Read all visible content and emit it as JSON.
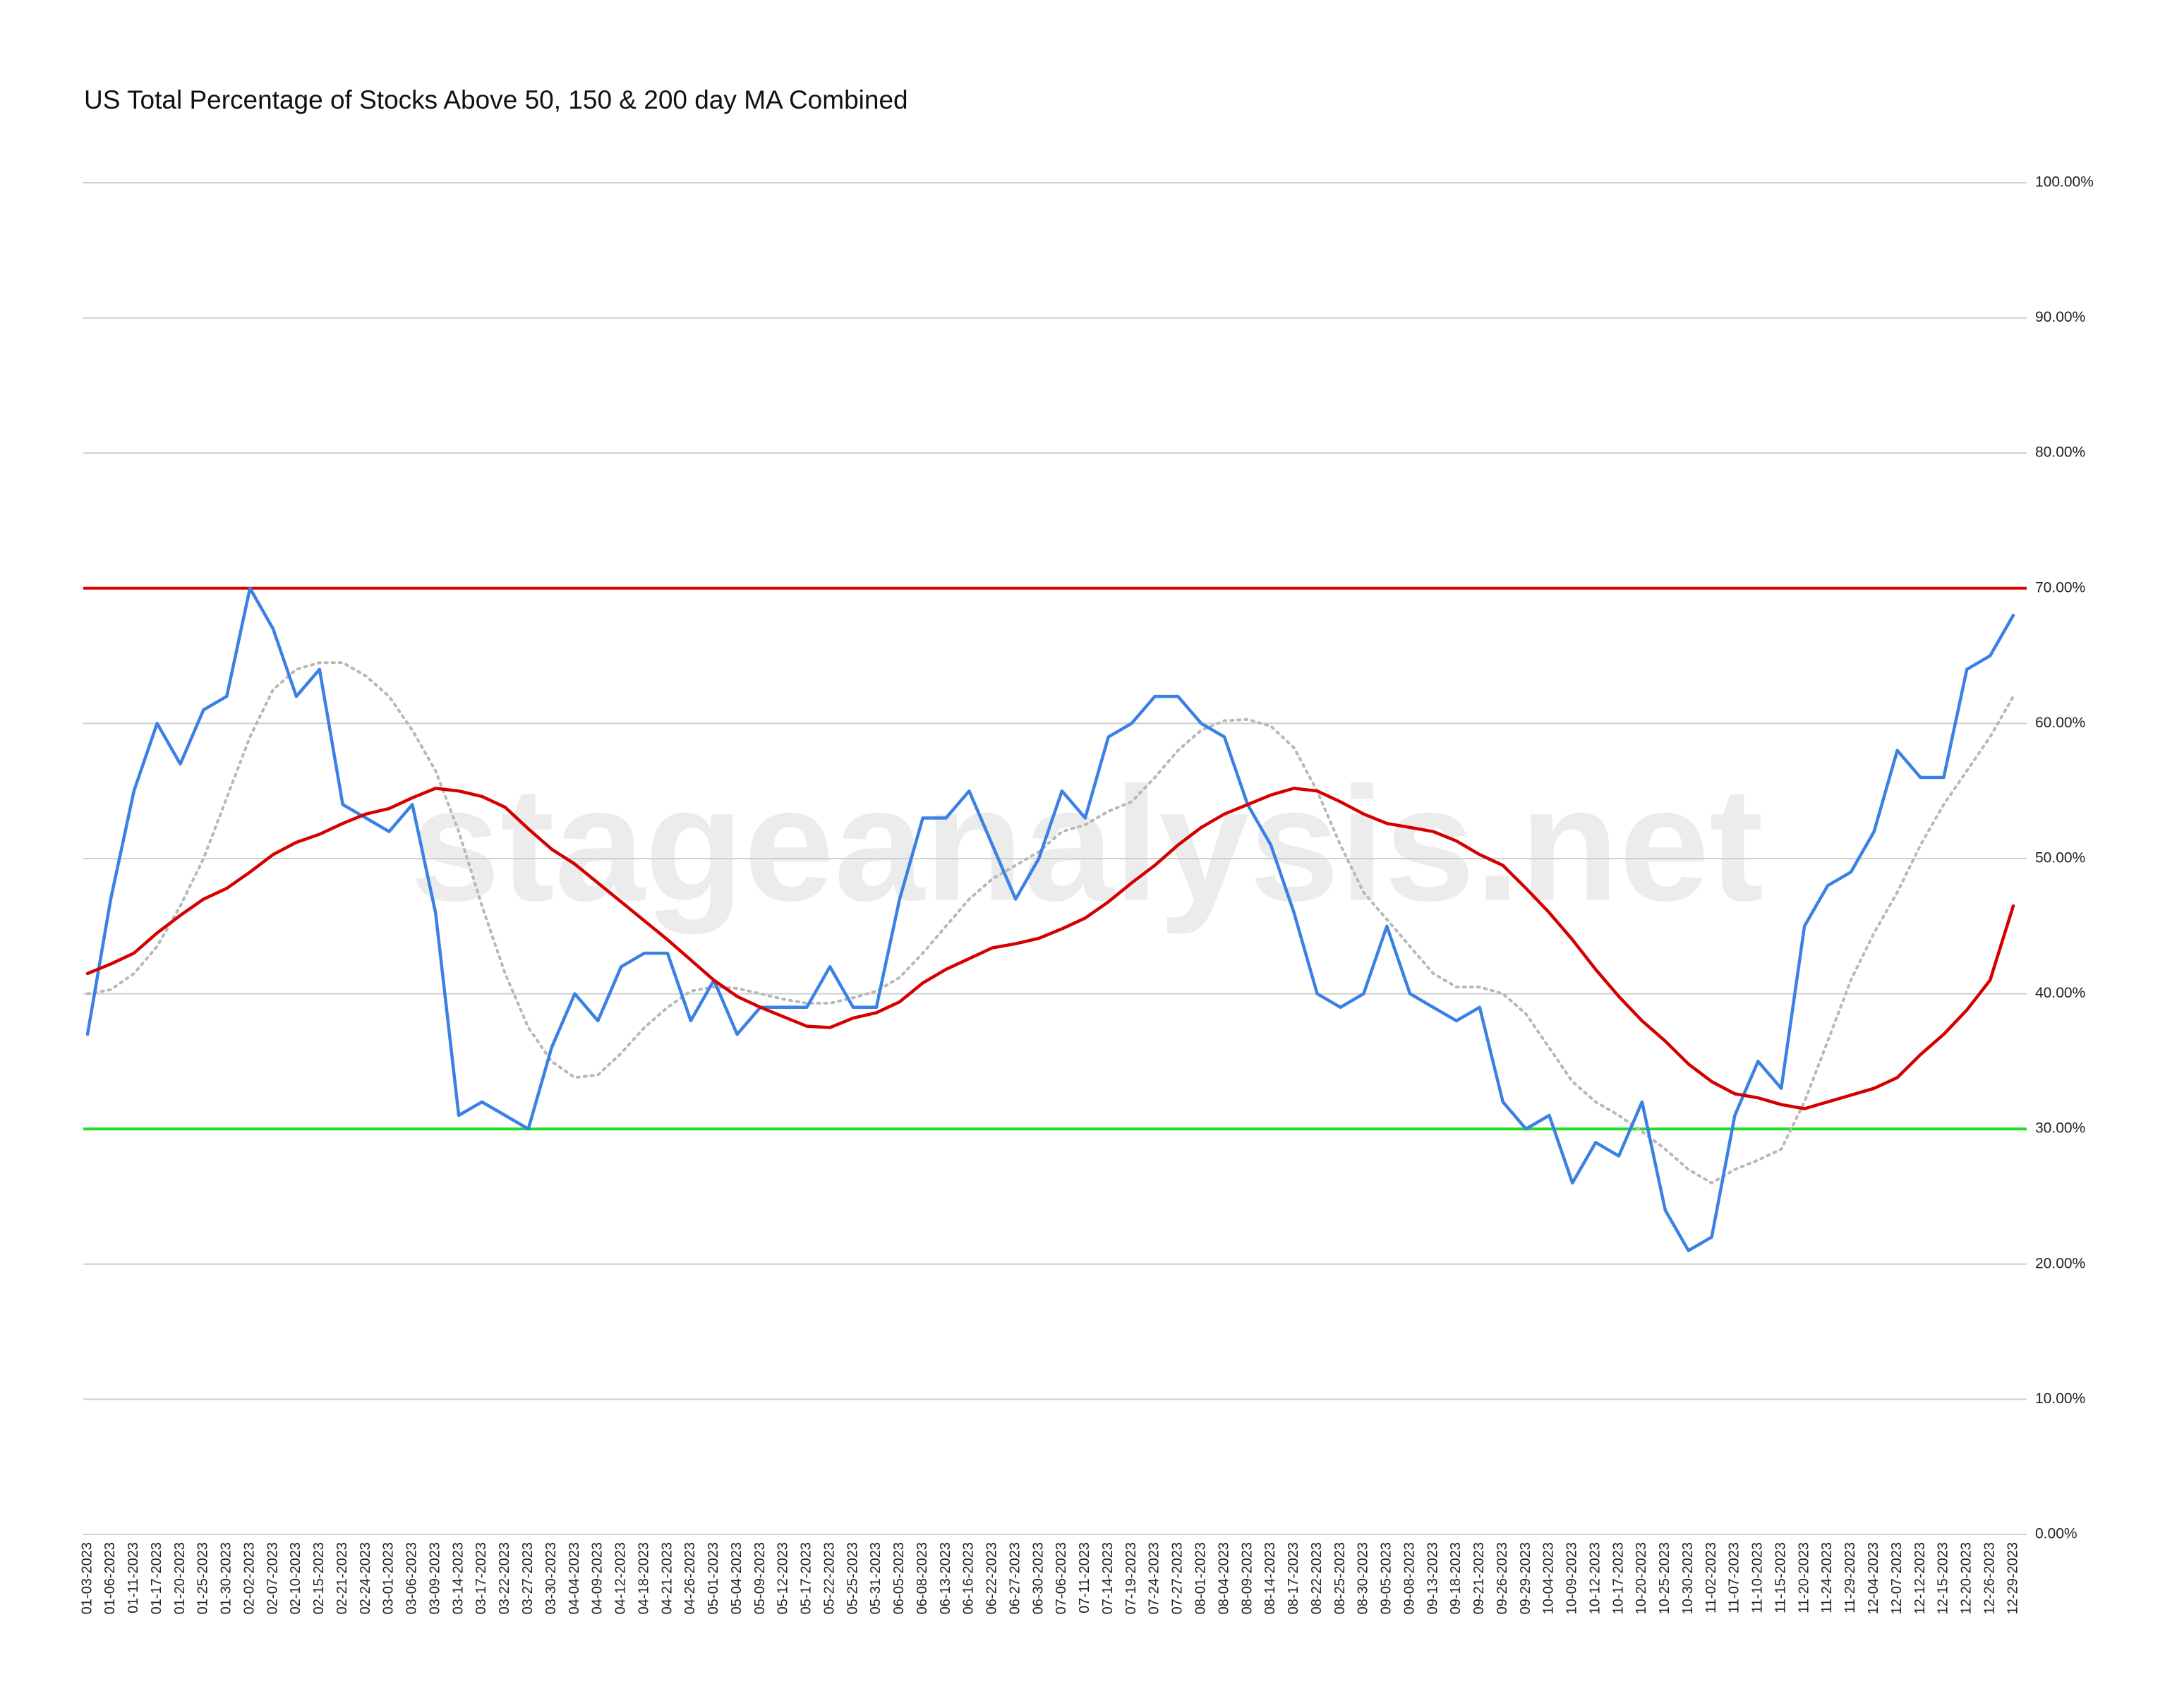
{
  "chart_data": {
    "type": "line",
    "title": "US Total Percentage of Stocks Above 50, 150 & 200 day MA Combined",
    "watermark": "stageanalysis.net",
    "categories": [
      "01-03-2023",
      "01-06-2023",
      "01-11-2023",
      "01-17-2023",
      "01-20-2023",
      "01-25-2023",
      "01-30-2023",
      "02-02-2023",
      "02-07-2023",
      "02-10-2023",
      "02-15-2023",
      "02-21-2023",
      "02-24-2023",
      "03-01-2023",
      "03-06-2023",
      "03-09-2023",
      "03-14-2023",
      "03-17-2023",
      "03-22-2023",
      "03-27-2023",
      "03-30-2023",
      "04-04-2023",
      "04-09-2023",
      "04-12-2023",
      "04-18-2023",
      "04-21-2023",
      "04-26-2023",
      "05-01-2023",
      "05-04-2023",
      "05-09-2023",
      "05-12-2023",
      "05-17-2023",
      "05-22-2023",
      "05-25-2023",
      "05-31-2023",
      "06-05-2023",
      "06-08-2023",
      "06-13-2023",
      "06-16-2023",
      "06-22-2023",
      "06-27-2023",
      "06-30-2023",
      "07-06-2023",
      "07-11-2023",
      "07-14-2023",
      "07-19-2023",
      "07-24-2023",
      "07-27-2023",
      "08-01-2023",
      "08-04-2023",
      "08-09-2023",
      "08-14-2023",
      "08-17-2023",
      "08-22-2023",
      "08-25-2023",
      "08-30-2023",
      "09-05-2023",
      "09-08-2023",
      "09-13-2023",
      "09-18-2023",
      "09-21-2023",
      "09-26-2023",
      "09-29-2023",
      "10-04-2023",
      "10-09-2023",
      "10-12-2023",
      "10-17-2023",
      "10-20-2023",
      "10-25-2023",
      "10-30-2023",
      "11-02-2023",
      "11-07-2023",
      "11-10-2023",
      "11-15-2023",
      "11-20-2023",
      "11-24-2023",
      "11-29-2023",
      "12-04-2023",
      "12-07-2023",
      "12-12-2023",
      "12-15-2023",
      "12-20-2023",
      "12-26-2023",
      "12-29-2023"
    ],
    "series": [
      {
        "color": "#b8b8b8",
        "dash": true,
        "values": [
          40,
          40.3,
          41.5,
          43.5,
          46.5,
          50,
          54.5,
          59,
          62.5,
          64,
          64.5,
          64.5,
          63.5,
          62,
          59.5,
          56.5,
          52,
          46.5,
          41.5,
          37.5,
          35,
          33.8,
          34,
          35.6,
          37.5,
          39,
          40.2,
          40.5,
          40.4,
          40,
          39.6,
          39.3,
          39.3,
          39.7,
          40.2,
          41.2,
          43,
          45,
          47,
          48.5,
          49.5,
          50.5,
          52,
          52.5,
          53.5,
          54.2,
          56,
          58,
          59.5,
          60.2,
          60.3,
          59.8,
          58.2,
          55,
          51,
          47.5,
          45.5,
          43.5,
          41.5,
          40.5,
          40.5,
          40,
          38.5,
          36,
          33.5,
          32,
          31,
          29.8,
          28.5,
          27,
          26,
          27,
          27.7,
          28.5,
          32,
          36.5,
          41,
          44.5,
          47.5,
          51,
          54,
          56.5,
          59,
          62
        ]
      },
      {
        "color": "#3b80e4",
        "dash": false,
        "values": [
          37,
          47,
          55,
          60,
          57,
          61,
          62,
          70,
          67,
          62,
          64,
          54,
          53,
          52,
          54,
          46,
          31,
          32,
          31,
          30,
          36,
          40,
          38,
          42,
          43,
          43,
          38,
          41,
          37,
          39,
          39,
          39,
          42,
          39,
          39,
          47,
          53,
          53,
          55,
          51,
          47,
          50,
          55,
          53,
          59,
          60,
          62,
          62,
          60,
          59,
          54,
          51,
          46,
          40,
          39,
          40,
          45,
          40,
          39,
          38,
          39,
          32,
          30,
          31,
          26,
          29,
          28,
          32,
          24,
          21,
          22,
          31,
          35,
          33,
          45,
          48,
          49,
          52,
          58,
          56,
          56,
          64,
          65,
          68
        ]
      },
      {
        "color": "#d40000",
        "dash": false,
        "values": [
          41.5,
          42.2,
          43,
          44.5,
          45.8,
          47,
          47.8,
          49,
          50.3,
          51.2,
          51.8,
          52.6,
          53.3,
          53.7,
          54.5,
          55.2,
          55,
          54.6,
          53.8,
          52.2,
          50.7,
          49.6,
          48.2,
          46.8,
          45.4,
          44,
          42.5,
          41,
          39.8,
          39,
          38.3,
          37.6,
          37.5,
          38.2,
          38.6,
          39.4,
          40.8,
          41.8,
          42.6,
          43.4,
          43.7,
          44.1,
          44.8,
          45.6,
          46.8,
          48.2,
          49.5,
          51,
          52.3,
          53.3,
          54,
          54.7,
          55.2,
          55,
          54.2,
          53.3,
          52.6,
          52.3,
          52,
          51.3,
          50.3,
          49.5,
          47.8,
          46,
          44,
          41.8,
          39.8,
          38,
          36.5,
          34.8,
          33.5,
          32.6,
          32.3,
          31.8,
          31.5,
          32,
          32.5,
          33,
          33.8,
          35.5,
          37,
          38.8,
          41,
          46.5
        ]
      }
    ],
    "reference_lines": [
      {
        "value": 70,
        "color": "#e00000"
      },
      {
        "value": 30,
        "color": "#22dd22"
      }
    ],
    "ylim": [
      0,
      100
    ],
    "yticks": [
      {
        "value": 0,
        "label": "0.00%"
      },
      {
        "value": 10,
        "label": "10.00%"
      },
      {
        "value": 20,
        "label": "20.00%"
      },
      {
        "value": 30,
        "label": "30.00%"
      },
      {
        "value": 40,
        "label": "40.00%"
      },
      {
        "value": 50,
        "label": "50.00%"
      },
      {
        "value": 60,
        "label": "60.00%"
      },
      {
        "value": 70,
        "label": "70.00%"
      },
      {
        "value": 80,
        "label": "80.00%"
      },
      {
        "value": 90,
        "label": "90.00%"
      },
      {
        "value": 100,
        "label": "100.00%"
      }
    ],
    "grid": true
  }
}
